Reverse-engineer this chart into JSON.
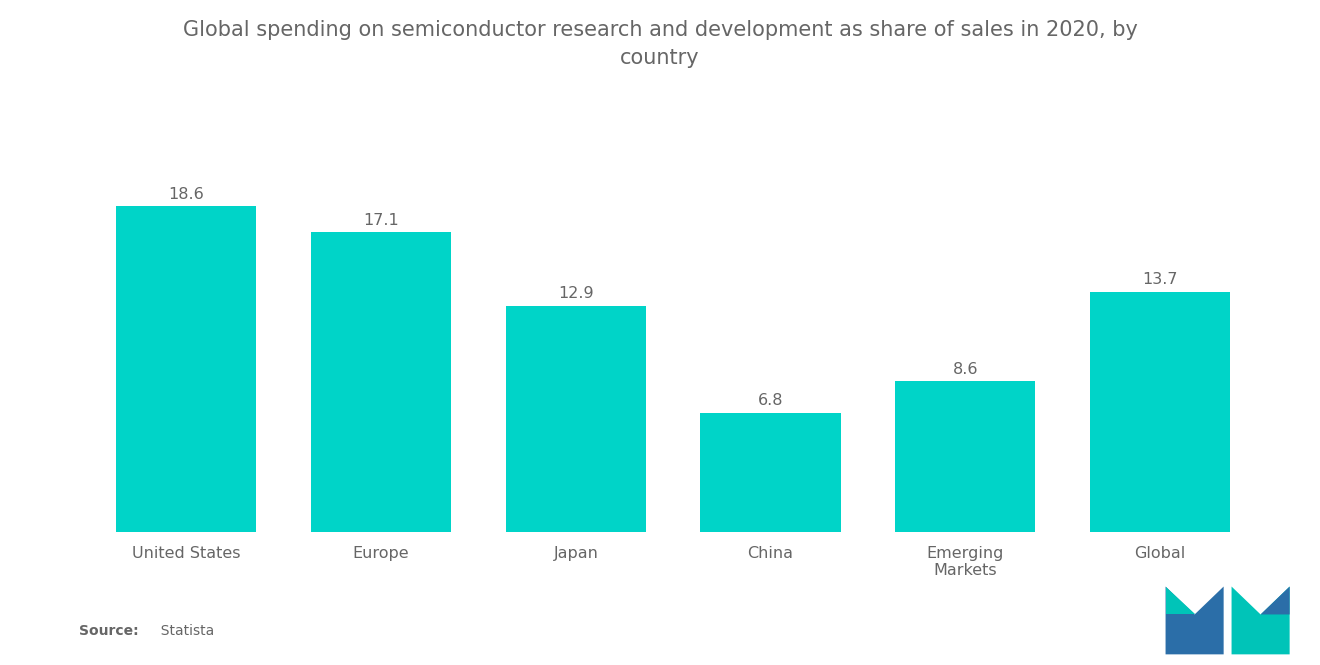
{
  "title": "Global spending on semiconductor research and development as share of sales in 2020, by\ncountry",
  "categories": [
    "United States",
    "Europe",
    "Japan",
    "China",
    "Emerging\nMarkets",
    "Global"
  ],
  "values": [
    18.6,
    17.1,
    12.9,
    6.8,
    8.6,
    13.7
  ],
  "bar_color": "#00D4C8",
  "background_color": "#ffffff",
  "title_fontsize": 15,
  "label_fontsize": 11.5,
  "value_fontsize": 11.5,
  "source_text_bold": "Source:",
  "source_text_normal": "  Statista",
  "ylim": [
    0,
    22
  ],
  "title_color": "#666666",
  "label_color": "#666666",
  "value_color": "#666666",
  "source_color": "#666666",
  "bar_width": 0.72,
  "logo_blue": "#2B6EA8",
  "logo_teal": "#00C4B8"
}
